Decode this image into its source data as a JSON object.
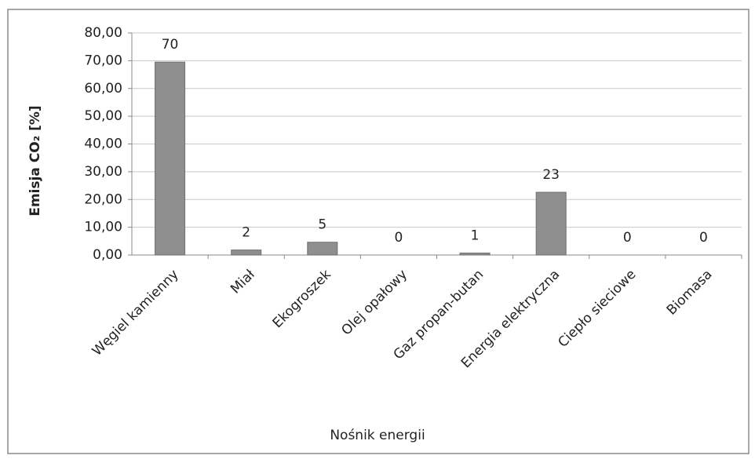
{
  "chart_data": {
    "type": "bar",
    "x_label": "Nośnik energii",
    "y_label": "Emisja CO₂ [%]",
    "categories": [
      "Węgiel kamienny",
      "Miał",
      "Ekogroszek",
      "Olej opałowy",
      "Gaz propan-butan",
      "Energia elektryczna",
      "Ciepło sieciowe",
      "Biomasa"
    ],
    "values": [
      69.5,
      1.8,
      4.6,
      0,
      0.7,
      22.6,
      0,
      0
    ],
    "value_labels": [
      "70",
      "2",
      "5",
      "0",
      "1",
      "23",
      "0",
      "0"
    ],
    "color": "#8f8f8f",
    "ylim": [
      0,
      80
    ],
    "yticks": [
      {
        "value": 0,
        "label": "0,00"
      },
      {
        "value": 10,
        "label": "10,00"
      },
      {
        "value": 20,
        "label": "20,00"
      },
      {
        "value": 30,
        "label": "30,00"
      },
      {
        "value": 40,
        "label": "40,00"
      },
      {
        "value": 50,
        "label": "50,00"
      },
      {
        "value": 60,
        "label": "60,00"
      },
      {
        "value": 70,
        "label": "70,00"
      },
      {
        "value": 80,
        "label": "80,00"
      }
    ],
    "grid": true
  }
}
